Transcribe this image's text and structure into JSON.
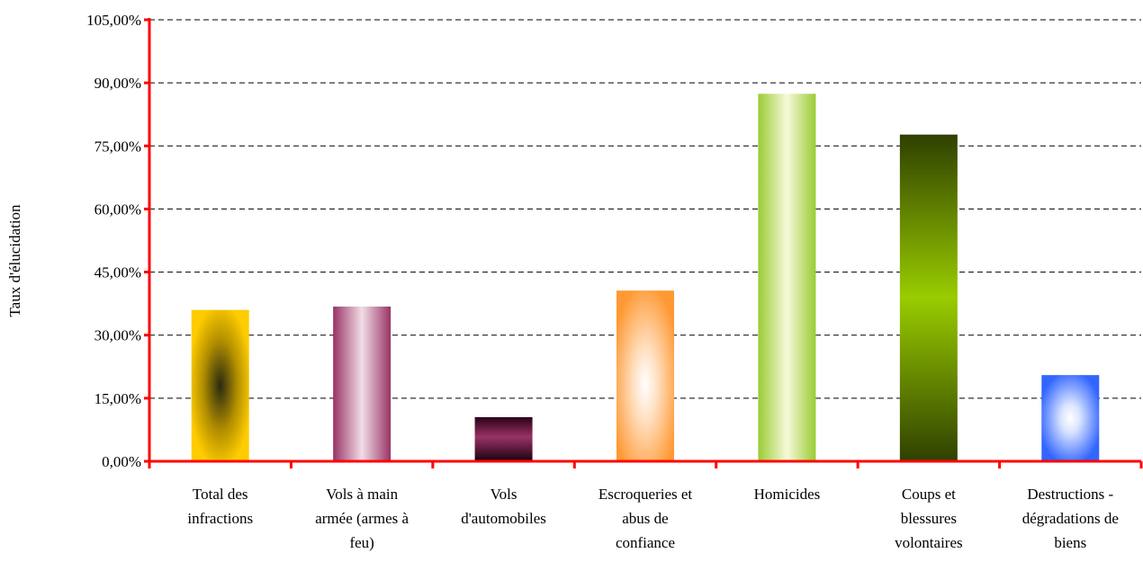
{
  "chart_data": {
    "type": "bar",
    "title": "",
    "xlabel": "",
    "ylabel": "Taux  d'élucidation",
    "ylim": [
      0,
      105
    ],
    "yticks": [
      "0,00%",
      "15,00%",
      "30,00%",
      "45,00%",
      "60,00%",
      "75,00%",
      "90,00%",
      "105,00%"
    ],
    "grid": true,
    "categories": [
      [
        "Total des",
        "infractions"
      ],
      [
        "Vols à main",
        "armée (armes à",
        "feu)"
      ],
      [
        "Vols",
        "d'automobiles"
      ],
      [
        "Escroqueries et",
        "abus de",
        "confiance"
      ],
      [
        "Homicides"
      ],
      [
        "Coups et",
        "blessures",
        "volontaires"
      ],
      [
        "Destructions -",
        "dégradations de",
        "biens"
      ]
    ],
    "values": [
      36.0,
      36.8,
      10.5,
      40.6,
      87.4,
      77.7,
      20.5
    ],
    "colors": {
      "axis": "#ff0000",
      "grid": "#000000",
      "bars": [
        "#ffcc00",
        "#993366",
        "#660033",
        "#ff9933",
        "#99cc33",
        "#669900",
        "#3366ff"
      ]
    }
  }
}
